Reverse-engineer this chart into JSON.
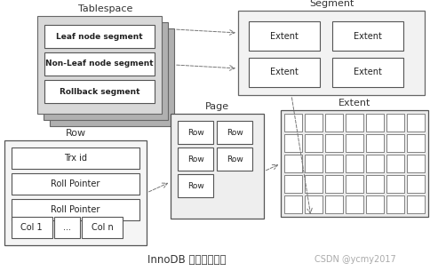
{
  "title": "InnoDB 逻辑存储结构",
  "watermark": "CSDN @ycmy2017",
  "bg_color": "#ffffff",
  "tablespace_label": "Tablespace",
  "segment_label": "Segment",
  "extent_label": "Extent",
  "page_label": "Page",
  "row_label": "Row",
  "tablespace_rows": [
    "Leaf node segment",
    "Non-Leaf node segment",
    "Rollback segment"
  ],
  "extent_grid_rows": 5,
  "extent_grid_cols": 7,
  "gray_stack": "#c8c8c8",
  "light_fill": "#f0f0f0",
  "white": "#ffffff",
  "edge_color": "#555555",
  "text_color": "#222222",
  "label_color": "#333333",
  "arrow_color": "#777777"
}
